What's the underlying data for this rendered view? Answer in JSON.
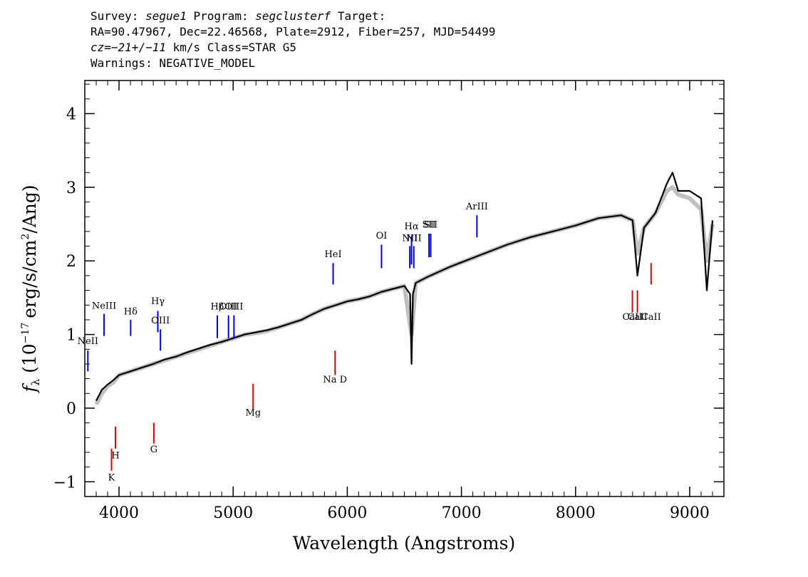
{
  "header": {
    "line1_prefix": "Survey:",
    "survey": "segue1",
    "program_label": "Program:",
    "program": "segclusterf",
    "target_label": "Target:",
    "line2": "RA=90.47967, Dec=22.46568, Plate=2912, Fiber=257, MJD=54499",
    "cz_label": "cz=",
    "cz_value": "−21+/−11",
    "cz_rest": "km/s Class=STAR G5",
    "line4": "Warnings: NEGATIVE_MODEL"
  },
  "colors": {
    "flux": "#c0c0c0",
    "model": "#000000",
    "emission": "#0000dd",
    "absorption": "#dd0000"
  },
  "chart_data": {
    "type": "line",
    "xlabel": "Wavelength (Angstroms)",
    "ylabel_prefix": "(10",
    "ylabel_exp": "−17",
    "ylabel_mid": "erg/s/cm",
    "ylabel_exp2": "2",
    "ylabel_suffix": "/Ang)",
    "ylabel_symbol": "f",
    "ylabel_sub": "λ",
    "xlim": [
      3700,
      9300
    ],
    "ylim": [
      -1.2,
      4.45
    ],
    "x_ticks": [
      4000,
      5000,
      6000,
      7000,
      8000,
      9000
    ],
    "x_tick_labels": [
      "4000",
      "5000",
      "6000",
      "7000",
      "8000",
      "9000"
    ],
    "y_ticks": [
      -1,
      0,
      1,
      2,
      3,
      4
    ],
    "y_tick_labels": [
      "−1",
      "0",
      "1",
      "2",
      "3",
      "4"
    ],
    "series": [
      {
        "role": "flux",
        "x": [
          3800,
          3850,
          3900,
          3950,
          4000,
          4100,
          4200,
          4300,
          4400,
          4500,
          4600,
          4700,
          4800,
          4900,
          5000,
          5100,
          5200,
          5300,
          5400,
          5500,
          5600,
          5700,
          5800,
          5900,
          6000,
          6100,
          6200,
          6300,
          6400,
          6500,
          6563,
          6600,
          6700,
          6800,
          6900,
          7000,
          7200,
          7400,
          7600,
          7800,
          8000,
          8200,
          8400,
          8500,
          8542,
          8600,
          8700,
          8800,
          8850,
          8900,
          9000,
          9100,
          9150,
          9200
        ],
        "y": [
          0.05,
          0.2,
          0.3,
          0.35,
          0.45,
          0.5,
          0.55,
          0.6,
          0.65,
          0.7,
          0.75,
          0.8,
          0.85,
          0.9,
          0.95,
          1.0,
          1.02,
          1.05,
          1.1,
          1.15,
          1.2,
          1.28,
          1.35,
          1.4,
          1.45,
          1.48,
          1.52,
          1.58,
          1.62,
          1.66,
          1.0,
          1.7,
          1.78,
          1.85,
          1.92,
          1.98,
          2.1,
          2.22,
          2.32,
          2.4,
          2.48,
          2.58,
          2.62,
          2.55,
          2.1,
          2.45,
          2.65,
          2.95,
          3.0,
          2.9,
          2.85,
          2.7,
          2.0,
          2.5
        ]
      },
      {
        "role": "model",
        "x": [
          3800,
          3850,
          3900,
          3950,
          4000,
          4100,
          4200,
          4300,
          4400,
          4500,
          4600,
          4700,
          4800,
          4900,
          5000,
          5100,
          5200,
          5300,
          5400,
          5500,
          5600,
          5700,
          5800,
          5900,
          6000,
          6100,
          6200,
          6300,
          6400,
          6500,
          6550,
          6563,
          6575,
          6600,
          6700,
          6800,
          6900,
          7000,
          7200,
          7400,
          7600,
          7800,
          8000,
          8200,
          8400,
          8500,
          8542,
          8600,
          8700,
          8800,
          8850,
          8900,
          9000,
          9100,
          9150,
          9200
        ],
        "y": [
          0.1,
          0.25,
          0.32,
          0.38,
          0.45,
          0.5,
          0.55,
          0.6,
          0.66,
          0.7,
          0.76,
          0.81,
          0.86,
          0.9,
          0.95,
          1.0,
          1.03,
          1.06,
          1.1,
          1.15,
          1.2,
          1.28,
          1.35,
          1.4,
          1.45,
          1.48,
          1.52,
          1.58,
          1.62,
          1.66,
          1.55,
          0.6,
          1.55,
          1.7,
          1.78,
          1.85,
          1.92,
          1.98,
          2.1,
          2.22,
          2.32,
          2.4,
          2.48,
          2.58,
          2.62,
          2.55,
          1.8,
          2.45,
          2.65,
          3.05,
          3.2,
          2.95,
          2.95,
          2.85,
          1.6,
          2.55
        ]
      }
    ],
    "line_markers": [
      {
        "label": "NeII",
        "x": 3727,
        "type": "emission",
        "y_bottom": 0.5,
        "y_top": 0.78,
        "label_y": 0.87
      },
      {
        "label": "NeIII",
        "x": 3869,
        "type": "emission",
        "y_bottom": 0.98,
        "y_top": 1.28,
        "label_y": 1.35
      },
      {
        "label": "Hδ",
        "x": 4102,
        "type": "emission",
        "y_bottom": 0.98,
        "y_top": 1.2,
        "label_y": 1.27
      },
      {
        "label": "Hγ",
        "x": 4340,
        "type": "emission",
        "y_bottom": 1.03,
        "y_top": 1.32,
        "label_y": 1.41
      },
      {
        "label": "OIII",
        "x": 4363,
        "type": "emission",
        "y_bottom": 0.78,
        "y_top": 1.07,
        "label_y": 1.15
      },
      {
        "label": "Hβ",
        "x": 4861,
        "type": "emission",
        "y_bottom": 0.95,
        "y_top": 1.26,
        "label_y": 1.34
      },
      {
        "label": "OIII",
        "x": 4959,
        "type": "emission",
        "y_bottom": 0.95,
        "y_top": 1.26,
        "label_y": 1.34
      },
      {
        "label": "OIII",
        "x": 5007,
        "type": "emission",
        "y_bottom": 0.95,
        "y_top": 1.26,
        "label_y": 1.34
      },
      {
        "label": "HeI",
        "x": 5876,
        "type": "emission",
        "y_bottom": 1.68,
        "y_top": 1.97,
        "label_y": 2.05
      },
      {
        "label": "OI",
        "x": 6300,
        "type": "emission",
        "y_bottom": 1.9,
        "y_top": 2.22,
        "label_y": 2.3
      },
      {
        "label": "NII",
        "x": 6548,
        "type": "emission",
        "y_bottom": 1.9,
        "y_top": 2.2,
        "label_y": 2.27
      },
      {
        "label": "Hα",
        "x": 6563,
        "type": "emission",
        "y_bottom": 1.95,
        "y_top": 2.34,
        "label_y": 2.43
      },
      {
        "label": "NII",
        "x": 6583,
        "type": "emission",
        "y_bottom": 1.9,
        "y_top": 2.2,
        "label_y": 2.27
      },
      {
        "label": "SII",
        "x": 6716,
        "type": "emission",
        "y_bottom": 2.05,
        "y_top": 2.37,
        "label_y": 2.45
      },
      {
        "label": "SII",
        "x": 6731,
        "type": "emission",
        "y_bottom": 2.05,
        "y_top": 2.37,
        "label_y": 2.45
      },
      {
        "label": "ArIII",
        "x": 7136,
        "type": "emission",
        "y_bottom": 2.32,
        "y_top": 2.62,
        "label_y": 2.7
      },
      {
        "label": "K",
        "x": 3934,
        "type": "absorption",
        "y_bottom": -0.85,
        "y_top": -0.55,
        "label_y": -0.98
      },
      {
        "label": "H",
        "x": 3969,
        "type": "absorption",
        "y_bottom": -0.55,
        "y_top": -0.25,
        "label_y": -0.68
      },
      {
        "label": "G",
        "x": 4305,
        "type": "absorption",
        "y_bottom": -0.48,
        "y_top": -0.2,
        "label_y": -0.6
      },
      {
        "label": "Mg",
        "x": 5175,
        "type": "absorption",
        "y_bottom": -0.02,
        "y_top": 0.33,
        "label_y": -0.1
      },
      {
        "label": "Na D",
        "x": 5893,
        "type": "absorption",
        "y_bottom": 0.45,
        "y_top": 0.78,
        "label_y": 0.35
      },
      {
        "label": "CaII",
        "x": 8498,
        "type": "absorption",
        "y_bottom": 1.3,
        "y_top": 1.6,
        "label_y": 1.2
      },
      {
        "label": "CaII",
        "x": 8542,
        "type": "absorption",
        "y_bottom": 1.3,
        "y_top": 1.6,
        "label_y": 1.2
      },
      {
        "label": "CaII",
        "x": 8662,
        "type": "absorption",
        "y_bottom": 1.68,
        "y_top": 1.97,
        "label_y": 1.2
      }
    ]
  }
}
